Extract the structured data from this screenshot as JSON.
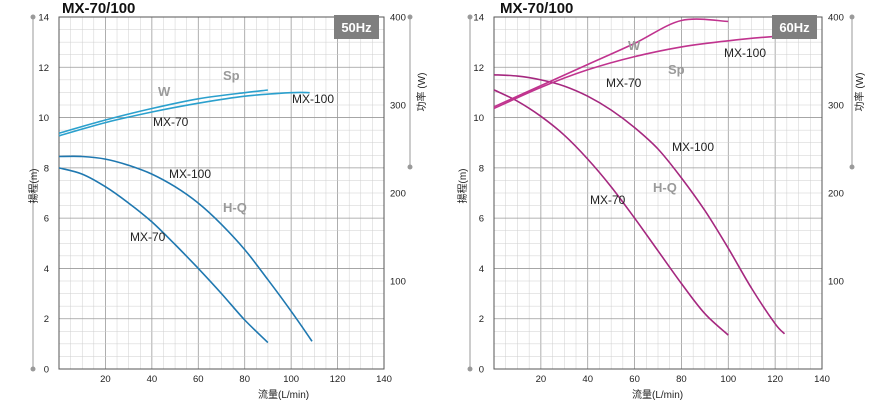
{
  "chart_data": [
    {
      "type": "line",
      "title": "MX-70/100",
      "badge": "50Hz",
      "xlabel": "流量(L/min)",
      "ylabel_left": "揚程(m)",
      "ylabel_right": "功率 (W)",
      "xlim": [
        0,
        140
      ],
      "ylim_left": [
        0,
        14
      ],
      "ylim_right": [
        0,
        400
      ],
      "x_ticks": [
        "20",
        "40",
        "60",
        "80",
        "100",
        "120",
        "140"
      ],
      "y_ticks_left": [
        "0",
        "2",
        "4",
        "6",
        "8",
        "10",
        "12",
        "14"
      ],
      "y_ticks_right": [
        "100",
        "200",
        "300",
        "400"
      ],
      "grid": true,
      "annotations": {
        "W": "W",
        "Sp": "Sp",
        "HQ": "H-Q"
      },
      "series": [
        {
          "name": "MX-70",
          "kind": "H-Q",
          "axis": "left",
          "color": "#1f78b0",
          "points": [
            [
              0,
              8.0
            ],
            [
              10,
              7.75
            ],
            [
              20,
              7.25
            ],
            [
              30,
              6.6
            ],
            [
              40,
              5.85
            ],
            [
              50,
              4.95
            ],
            [
              60,
              4.0
            ],
            [
              70,
              3.0
            ],
            [
              80,
              1.95
            ],
            [
              90,
              1.05
            ]
          ]
        },
        {
          "name": "MX-100",
          "kind": "H-Q",
          "axis": "left",
          "color": "#1f78b0",
          "points": [
            [
              0,
              8.45
            ],
            [
              10,
              8.45
            ],
            [
              20,
              8.35
            ],
            [
              30,
              8.1
            ],
            [
              40,
              7.75
            ],
            [
              50,
              7.25
            ],
            [
              60,
              6.6
            ],
            [
              70,
              5.75
            ],
            [
              80,
              4.75
            ],
            [
              90,
              3.55
            ],
            [
              100,
              2.3
            ],
            [
              109,
              1.1
            ]
          ]
        },
        {
          "name": "MX-70",
          "kind": "W",
          "axis": "right",
          "color": "#2ba0cd",
          "points": [
            [
              0,
              268
            ],
            [
              20,
              283
            ],
            [
              40,
              296
            ],
            [
              60,
              307
            ],
            [
              80,
              314
            ],
            [
              90,
              317
            ]
          ]
        },
        {
          "name": "MX-100",
          "kind": "W",
          "axis": "right",
          "color": "#2ba0cd",
          "points": [
            [
              0,
              265
            ],
            [
              20,
              280
            ],
            [
              40,
              292
            ],
            [
              60,
              302
            ],
            [
              80,
              310
            ],
            [
              100,
              314
            ],
            [
              108,
              314
            ]
          ]
        }
      ],
      "curve_labels": [
        "MX-100",
        "MX-70",
        "MX-100",
        "MX-70"
      ]
    },
    {
      "type": "line",
      "title": "MX-70/100",
      "badge": "60Hz",
      "xlabel": "流量(L/min)",
      "ylabel_left": "揚程(m)",
      "ylabel_right": "功率 (W)",
      "xlim": [
        0,
        140
      ],
      "ylim_left": [
        0,
        14
      ],
      "ylim_right": [
        0,
        400
      ],
      "x_ticks": [
        "20",
        "40",
        "60",
        "80",
        "100",
        "120",
        "140"
      ],
      "y_ticks_left": [
        "0",
        "2",
        "4",
        "6",
        "8",
        "10",
        "12",
        "14"
      ],
      "y_ticks_right": [
        "100",
        "200",
        "300",
        "400"
      ],
      "grid": true,
      "annotations": {
        "W": "W",
        "Sp": "Sp",
        "HQ": "H-Q"
      },
      "series": [
        {
          "name": "MX-70",
          "kind": "H-Q",
          "axis": "left",
          "color": "#a5287f",
          "points": [
            [
              0,
              11.1
            ],
            [
              10,
              10.65
            ],
            [
              20,
              10.05
            ],
            [
              30,
              9.3
            ],
            [
              40,
              8.35
            ],
            [
              50,
              7.25
            ],
            [
              60,
              6.0
            ],
            [
              70,
              4.7
            ],
            [
              80,
              3.4
            ],
            [
              90,
              2.2
            ],
            [
              100,
              1.35
            ]
          ]
        },
        {
          "name": "MX-100",
          "kind": "H-Q",
          "axis": "left",
          "color": "#a5287f",
          "points": [
            [
              0,
              11.7
            ],
            [
              10,
              11.65
            ],
            [
              20,
              11.5
            ],
            [
              30,
              11.25
            ],
            [
              40,
              10.85
            ],
            [
              50,
              10.3
            ],
            [
              60,
              9.6
            ],
            [
              70,
              8.75
            ],
            [
              80,
              7.6
            ],
            [
              90,
              6.3
            ],
            [
              100,
              4.8
            ],
            [
              110,
              3.2
            ],
            [
              120,
              1.8
            ],
            [
              124,
              1.4
            ]
          ]
        },
        {
          "name": "MX-70",
          "kind": "W",
          "axis": "right",
          "color": "#c0338e",
          "points": [
            [
              0,
              298
            ],
            [
              20,
              322
            ],
            [
              40,
              346
            ],
            [
              60,
              370
            ],
            [
              80,
              396
            ],
            [
              100,
              395
            ]
          ]
        },
        {
          "name": "MX-100",
          "kind": "W",
          "axis": "right",
          "color": "#c0338e",
          "points": [
            [
              0,
              296
            ],
            [
              20,
              320
            ],
            [
              40,
              340
            ],
            [
              60,
              355
            ],
            [
              80,
              366
            ],
            [
              100,
              373
            ],
            [
              120,
              378
            ],
            [
              124,
              378
            ]
          ]
        }
      ],
      "curve_labels": [
        "MX-100",
        "MX-70",
        "MX-100",
        "MX-70"
      ]
    }
  ]
}
